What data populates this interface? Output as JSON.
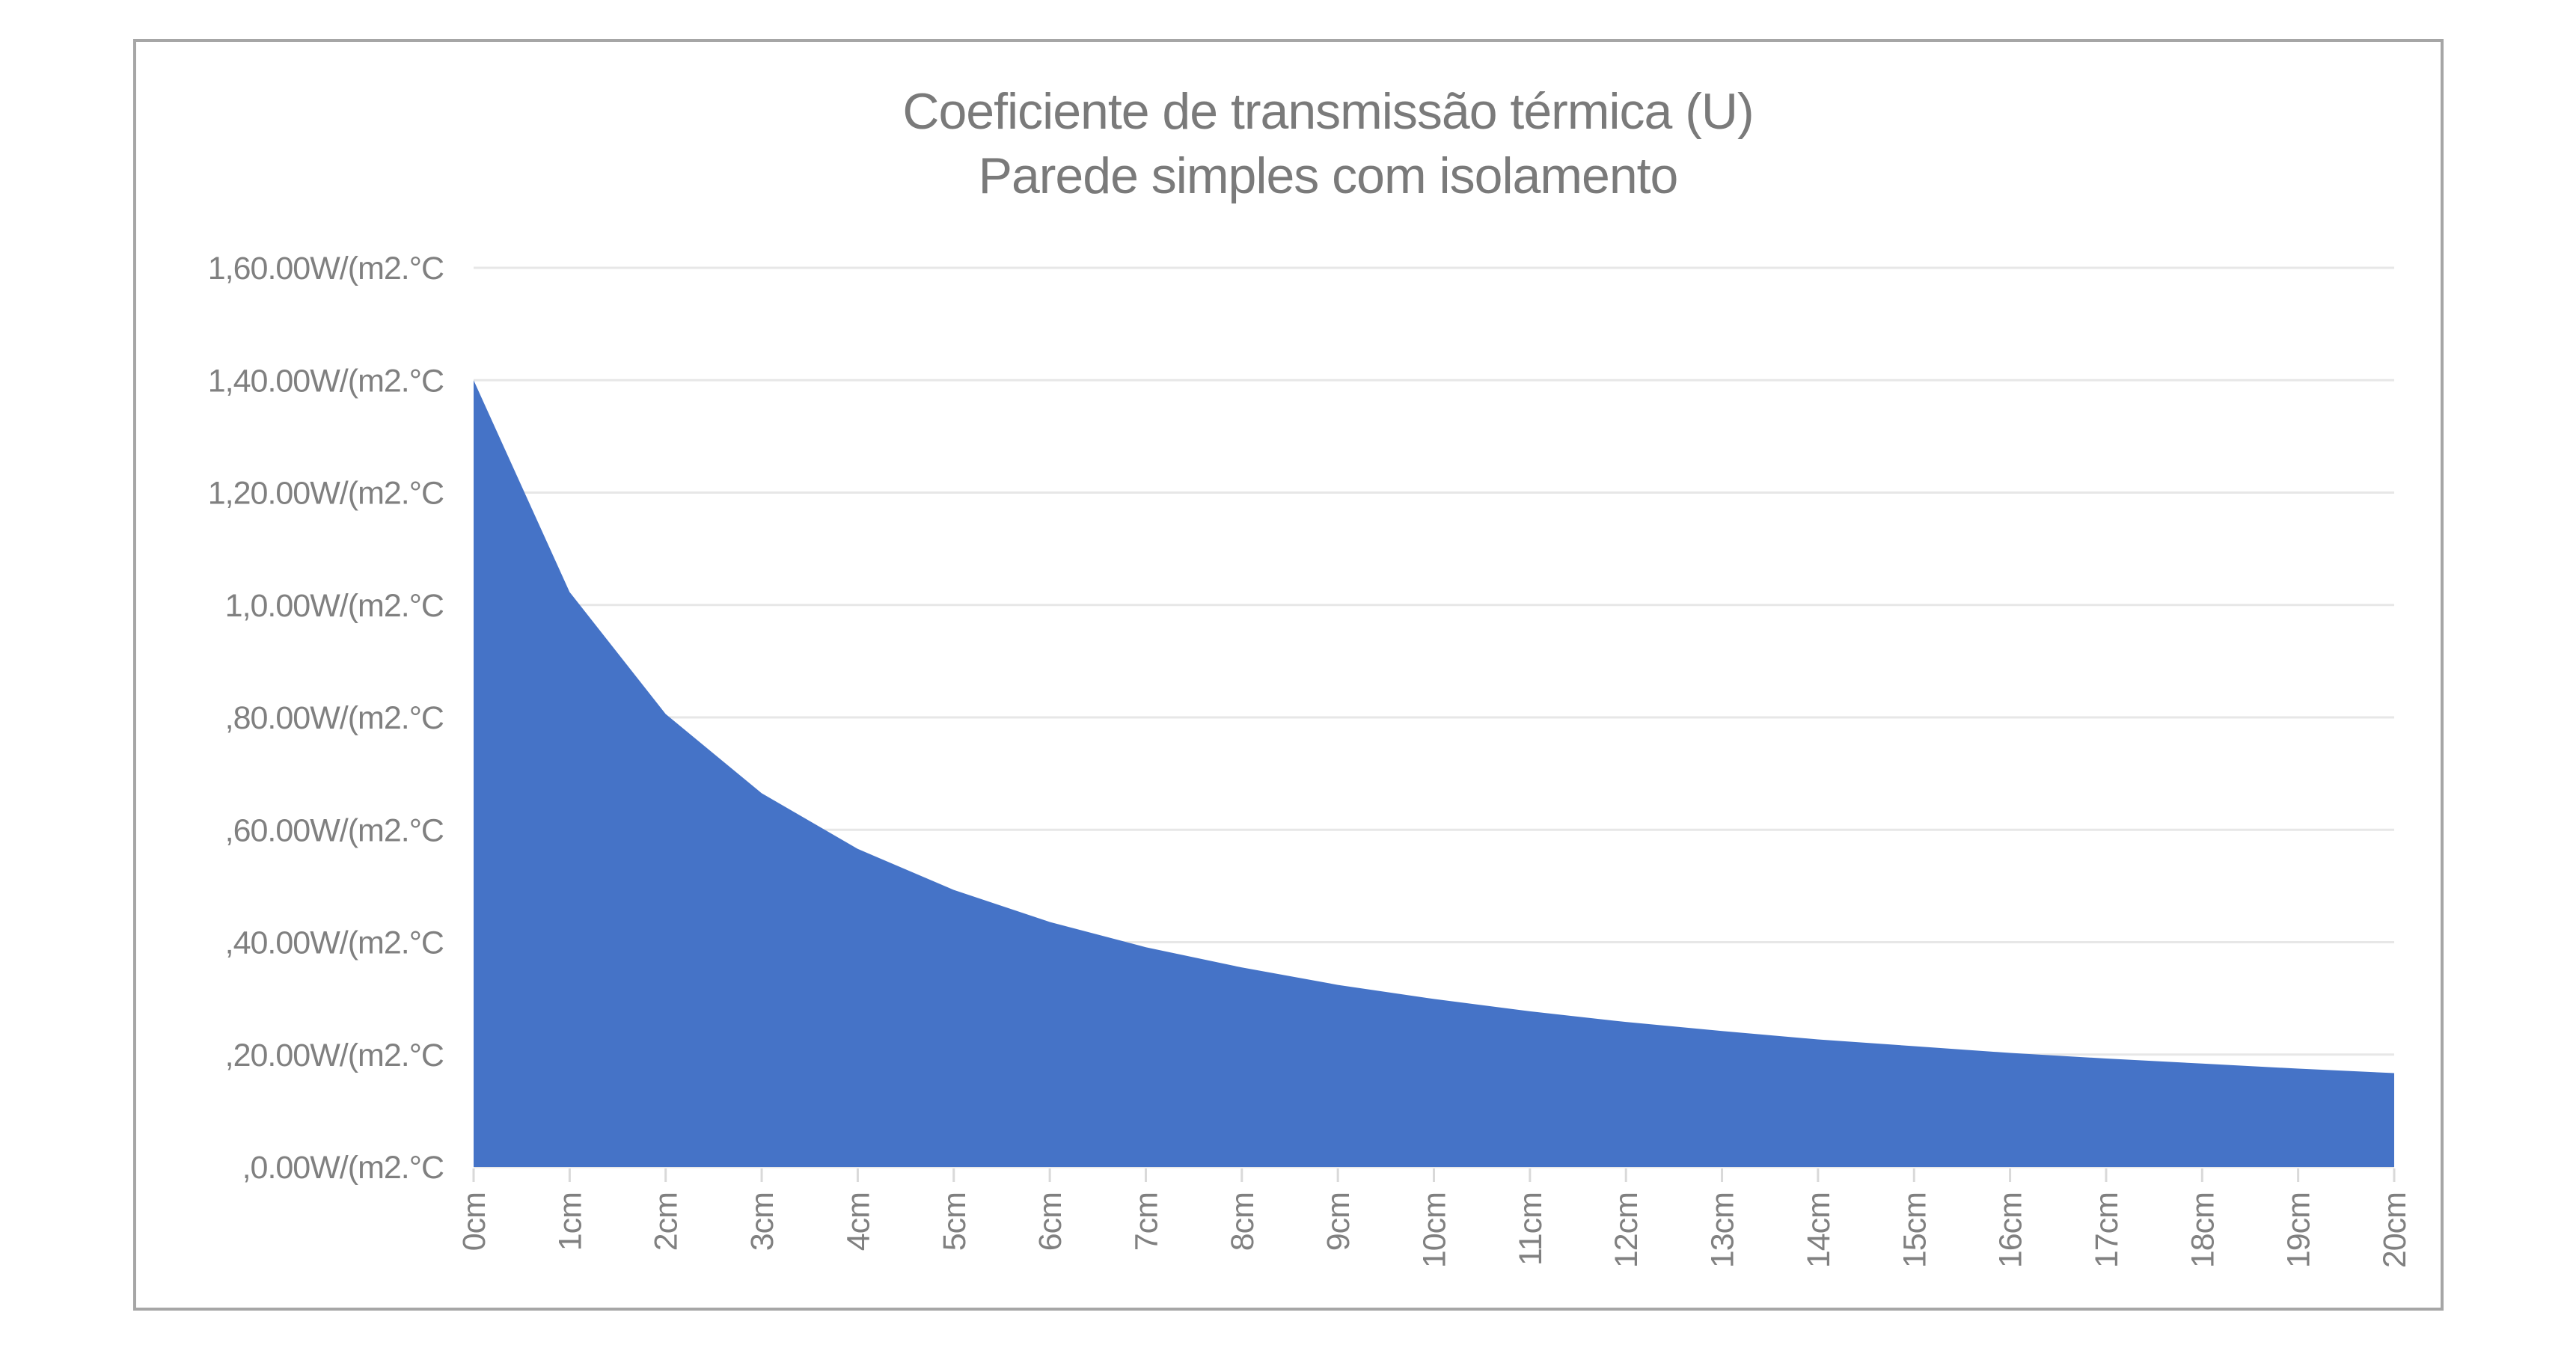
{
  "window": {
    "background": "#ffffff"
  },
  "chart": {
    "title_line1": "Coeficiente de transmissão térmica (U)",
    "title_line2": "Parede simples com isolamento",
    "frame": {
      "border_color": "#a6a6a6",
      "background": "#ffffff"
    },
    "colors": {
      "title_text": "#7a7a7a",
      "axis_label_text": "#808080",
      "gridline": "#e7e7e7",
      "tick": "#d9d9d9",
      "area_fill": "#4573c7"
    }
  },
  "chart_data": {
    "type": "area",
    "title": "Coeficiente de transmissão térmica (U)",
    "subtitle": "Parede simples com isolamento",
    "x_categories": [
      "0cm",
      "1cm",
      "2cm",
      "3cm",
      "4cm",
      "5cm",
      "6cm",
      "7cm",
      "8cm",
      "9cm",
      "10cm",
      "11cm",
      "12cm",
      "13cm",
      "14cm",
      "15cm",
      "16cm",
      "17cm",
      "18cm",
      "19cm",
      "20cm"
    ],
    "series": [
      {
        "name": "Coeficiente de transmissão térmica U",
        "values": [
          1.4,
          1.023,
          0.806,
          0.665,
          0.566,
          0.493,
          0.436,
          0.391,
          0.355,
          0.324,
          0.299,
          0.277,
          0.258,
          0.242,
          0.227,
          0.215,
          0.203,
          0.193,
          0.184,
          0.175,
          0.167
        ]
      }
    ],
    "xlabel": "",
    "ylabel": "",
    "y_axis": {
      "tick_labels": [
        "1,60.00W/(m2.°C",
        "1,40.00W/(m2.°C",
        "1,20.00W/(m2.°C",
        "1,0.00W/(m2.°C",
        ",80.00W/(m2.°C",
        ",60.00W/(m2.°C",
        ",40.00W/(m2.°C",
        ",20.00W/(m2.°C",
        ",0.00W/(m2.°C"
      ],
      "tick_values": [
        1.6,
        1.4,
        1.2,
        1.0,
        0.8,
        0.6,
        0.4,
        0.2,
        0.0
      ],
      "min": 0.0,
      "max": 1.6
    },
    "x_tick_rotation": -90,
    "grid": "horizontal-only",
    "legend": "none"
  }
}
